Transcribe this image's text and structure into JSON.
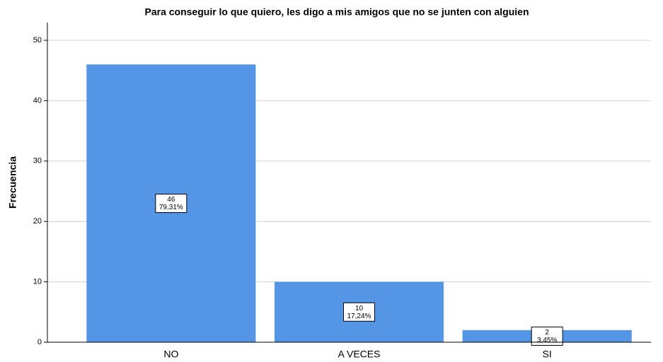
{
  "chart_data": {
    "type": "bar",
    "title": "Para conseguir lo que quiero, les digo a mis amigos que no se junten con alguien",
    "y_label": "Frecuencia",
    "categories": [
      "NO",
      "A VECES",
      "SI"
    ],
    "values": [
      46,
      10,
      2
    ],
    "percent_labels": [
      "79,31%",
      "17,24%",
      "3,45%"
    ],
    "color": "#5595e5",
    "ylim": [
      0,
      50
    ],
    "yticks": [
      0,
      10,
      20,
      30,
      40,
      50
    ],
    "grid": true
  }
}
